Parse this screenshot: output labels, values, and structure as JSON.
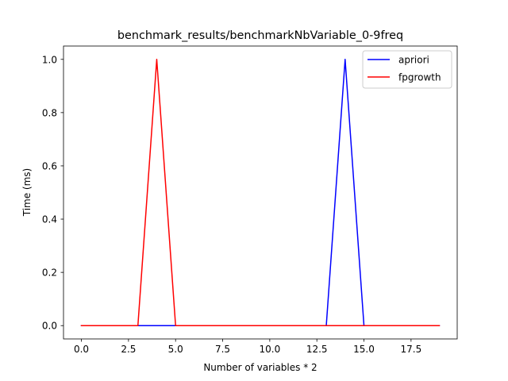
{
  "chart_data": {
    "type": "line",
    "title": "benchmark_results/benchmarkNbVariable_0-9freq",
    "xlabel": "Number of variables * 2",
    "ylabel": "Time (ms)",
    "xlim": [
      -0.95,
      19.95
    ],
    "ylim": [
      -0.05,
      1.05
    ],
    "xticks": [
      0.0,
      2.5,
      5.0,
      7.5,
      10.0,
      12.5,
      15.0,
      17.5
    ],
    "xtick_labels": [
      "0.0",
      "2.5",
      "5.0",
      "7.5",
      "10.0",
      "12.5",
      "15.0",
      "17.5"
    ],
    "yticks": [
      0.0,
      0.2,
      0.4,
      0.6,
      0.8,
      1.0
    ],
    "ytick_labels": [
      "0.0",
      "0.2",
      "0.4",
      "0.6",
      "0.8",
      "1.0"
    ],
    "grid": false,
    "legend_position": "upper right",
    "x": [
      0,
      1,
      2,
      3,
      4,
      5,
      6,
      7,
      8,
      9,
      10,
      11,
      12,
      13,
      14,
      15,
      16,
      17,
      18,
      19
    ],
    "series": [
      {
        "name": "apriori",
        "color": "#0000ff",
        "values": [
          0,
          0,
          0,
          0,
          0,
          0,
          0,
          0,
          0,
          0,
          0,
          0,
          0,
          0,
          1,
          0,
          0,
          0,
          0,
          0
        ]
      },
      {
        "name": "fpgrowth",
        "color": "#ff0000",
        "values": [
          0,
          0,
          0,
          0,
          1,
          0,
          0,
          0,
          0,
          0,
          0,
          0,
          0,
          0,
          0,
          0,
          0,
          0,
          0,
          0
        ]
      }
    ]
  }
}
